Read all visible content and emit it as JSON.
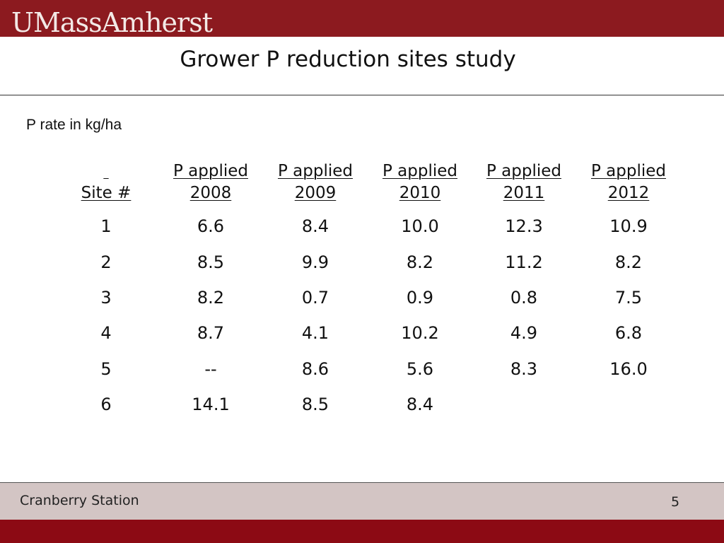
{
  "header": {
    "logo_text": "UMassAmherst",
    "accent_color": "#8c1a1f"
  },
  "title": "Grower P reduction sites study",
  "subtitle": "P rate in kg/ha",
  "table": {
    "columns": [
      {
        "line1": "",
        "line2": "Site #"
      },
      {
        "line1": "P applied",
        "line2": "2008"
      },
      {
        "line1": "P applied",
        "line2": "2009"
      },
      {
        "line1": "P applied",
        "line2": "2010"
      },
      {
        "line1": "P applied",
        "line2": "2011"
      },
      {
        "line1": "P applied",
        "line2": "2012"
      }
    ],
    "rows": [
      [
        "1",
        "6.6",
        "8.4",
        "10.0",
        "12.3",
        "10.9"
      ],
      [
        "2",
        "8.5",
        "9.9",
        "8.2",
        "11.2",
        "8.2"
      ],
      [
        "3",
        "8.2",
        "0.7",
        "0.9",
        "0.8",
        "7.5"
      ],
      [
        "4",
        "8.7",
        "4.1",
        "10.2",
        "4.9",
        "6.8"
      ],
      [
        "5",
        "--",
        "8.6",
        "5.6",
        "8.3",
        "16.0"
      ],
      [
        "6",
        "14.1",
        "8.5",
        "8.4",
        "",
        ""
      ]
    ]
  },
  "footer": {
    "station": "Cranberry Station",
    "page_number": "5"
  }
}
